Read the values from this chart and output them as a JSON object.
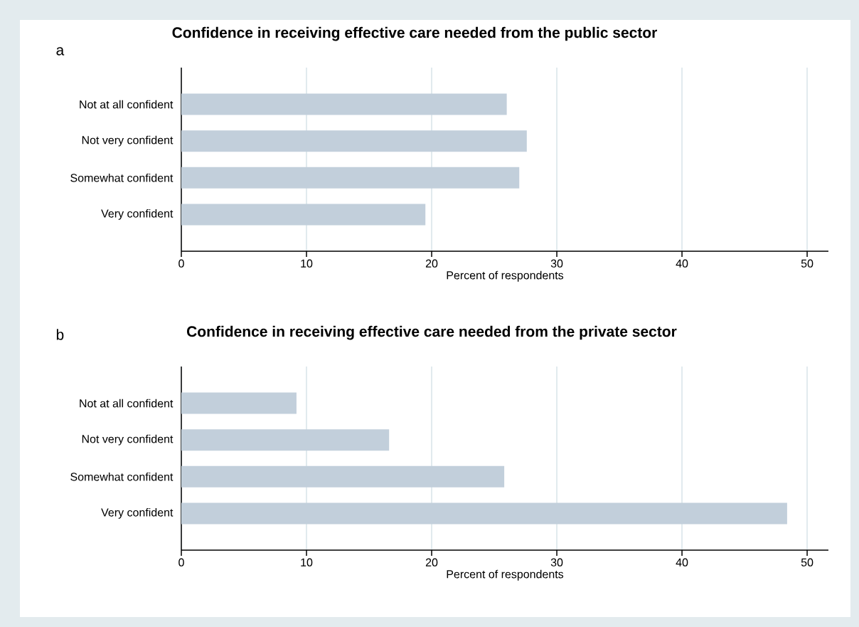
{
  "chart_data": [
    {
      "type": "bar",
      "orientation": "horizontal",
      "title": "Confidence in receiving effective care needed from the public sector",
      "annotations": [
        "a"
      ],
      "xlabel": "Percent of respondents",
      "categories": [
        "Not at all confident",
        "Not very confident",
        "Somewhat confident",
        "Very confident"
      ],
      "values": [
        26.0,
        27.6,
        27.0,
        19.5
      ],
      "color": "#c2cfdb",
      "xlim": [
        0,
        51.7
      ],
      "xticks": [
        0,
        10,
        20,
        30,
        40,
        50
      ],
      "grid": "x"
    },
    {
      "type": "bar",
      "orientation": "horizontal",
      "title": "Confidence in receiving effective care needed from the private sector",
      "annotations": [
        "b"
      ],
      "xlabel": "Percent of respondents",
      "categories": [
        "Not at all confident",
        "Not very confident",
        "Somewhat confident",
        "Very confident"
      ],
      "values": [
        9.2,
        16.6,
        25.8,
        48.4
      ],
      "color": "#c2cfdb",
      "xlim": [
        0,
        51.7
      ],
      "xticks": [
        0,
        10,
        20,
        30,
        40,
        50
      ],
      "grid": "x"
    }
  ]
}
